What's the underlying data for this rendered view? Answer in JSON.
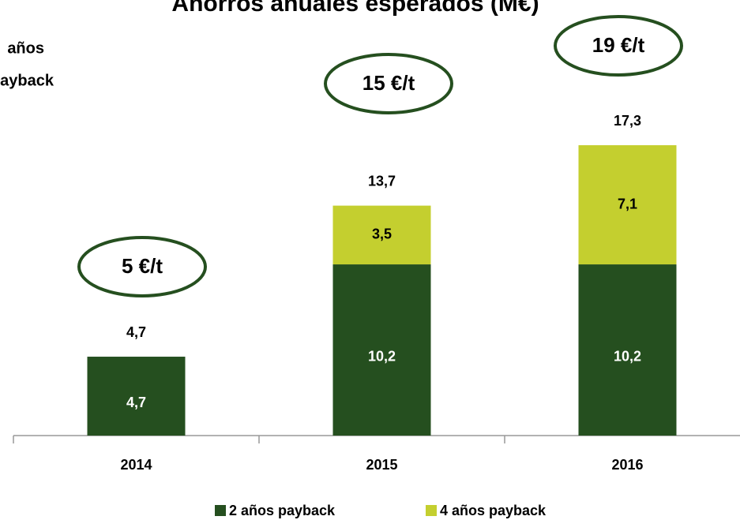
{
  "chart_data": {
    "type": "stacked_bar",
    "title": "Ahorros anuales esperados (M€)",
    "side_label": [
      "años",
      "payback"
    ],
    "categories": [
      "2014",
      "2015",
      "2016"
    ],
    "series": [
      {
        "name": "2 años payback",
        "color": "#254f1f",
        "values": [
          4.7,
          10.2,
          10.2
        ],
        "value_labels": [
          "4,7",
          "10,2",
          "10,2"
        ]
      },
      {
        "name": "4 años payback",
        "color": "#c4cf2f",
        "values": [
          null,
          3.5,
          7.1
        ],
        "value_labels": [
          null,
          "3,5",
          "7,1"
        ]
      }
    ],
    "totals": [
      4.7,
      13.7,
      17.3
    ],
    "total_labels": [
      "4,7",
      "13,7",
      "17,3"
    ],
    "annotations": [
      "5 €/t",
      "15 €/t",
      "19 €/t"
    ],
    "ylim": [
      0,
      20
    ],
    "legend": "bottom"
  }
}
